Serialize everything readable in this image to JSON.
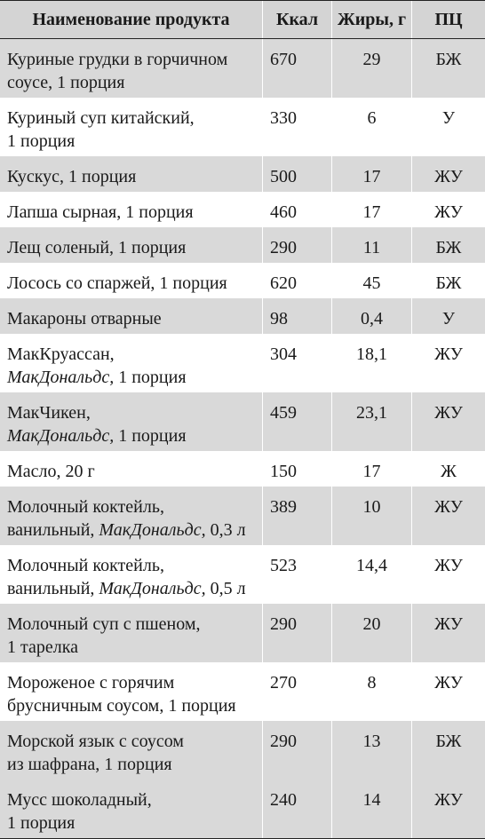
{
  "headers": {
    "name": "Наименование продукта",
    "kcal": "Ккал",
    "fat": "Жиры, г",
    "pc": "ПЦ"
  },
  "rows": [
    {
      "line1": "Куриные грудки в горчичном",
      "line1_italic": "",
      "line1_tail": "",
      "line2": "соусе, 1 порция",
      "line2_italic": "",
      "line2_tail": "",
      "kcal": "670",
      "fat": "29",
      "pc": "БЖ"
    },
    {
      "line1": "Куриный суп китайский,",
      "line1_italic": "",
      "line1_tail": "",
      "line2": "1 порция",
      "line2_italic": "",
      "line2_tail": "",
      "kcal": "330",
      "fat": "6",
      "pc": "У"
    },
    {
      "line1": "Кускус, 1 порция",
      "kcal": "500",
      "fat": "17",
      "pc": "ЖУ"
    },
    {
      "line1": "Лапша сырная, 1 порция",
      "kcal": "460",
      "fat": "17",
      "pc": "ЖУ"
    },
    {
      "line1": "Лещ соленый, 1 порция",
      "kcal": "290",
      "fat": "11",
      "pc": "БЖ"
    },
    {
      "line1": "Лосось со спаржей, 1 порция",
      "kcal": "620",
      "fat": "45",
      "pc": "БЖ"
    },
    {
      "line1": "Макароны отварные",
      "kcal": "98",
      "fat": "0,4",
      "pc": "У"
    },
    {
      "line1": "МакКруассан,",
      "line2": "",
      "line2_italic": "МакДональдс,",
      "line2_tail": " 1 порция",
      "kcal": "304",
      "fat": "18,1",
      "pc": "ЖУ"
    },
    {
      "line1": "МакЧикен,",
      "line2": "",
      "line2_italic": "МакДональдс,",
      "line2_tail": " 1 порция",
      "kcal": "459",
      "fat": "23,1",
      "pc": "ЖУ"
    },
    {
      "line1": "Масло, 20 г",
      "kcal": "150",
      "fat": "17",
      "pc": "Ж"
    },
    {
      "line1": "Молочный коктейль,",
      "line2": "ванильный, ",
      "line2_italic": "МакДональдс,",
      "line2_tail": " 0,3 л",
      "kcal": "389",
      "fat": "10",
      "pc": "ЖУ"
    },
    {
      "line1": "Молочный коктейль,",
      "line2": "ванильный, ",
      "line2_italic": "МакДональдс,",
      "line2_tail": " 0,5 л",
      "kcal": "523",
      "fat": "14,4",
      "pc": "ЖУ"
    },
    {
      "line1": "Молочный суп с пшеном,",
      "line2": "1 тарелка",
      "line2_italic": "",
      "line2_tail": "",
      "kcal": "290",
      "fat": "20",
      "pc": "ЖУ"
    },
    {
      "line1": "Мороженое с горячим",
      "line2": "брусничным соусом, 1 порция",
      "line2_italic": "",
      "line2_tail": "",
      "kcal": "270",
      "fat": "8",
      "pc": "ЖУ"
    },
    {
      "line1": "Морской язык с соусом",
      "line2": "из шафрана, 1 порция",
      "line2_italic": "",
      "line2_tail": "",
      "kcal": "290",
      "fat": "13",
      "pc": "БЖ"
    },
    {
      "line1": "Мусс шоколадный,",
      "line2": "1 порция",
      "line2_italic": "",
      "line2_tail": "",
      "kcal": "240",
      "fat": "14",
      "pc": "ЖУ"
    }
  ]
}
